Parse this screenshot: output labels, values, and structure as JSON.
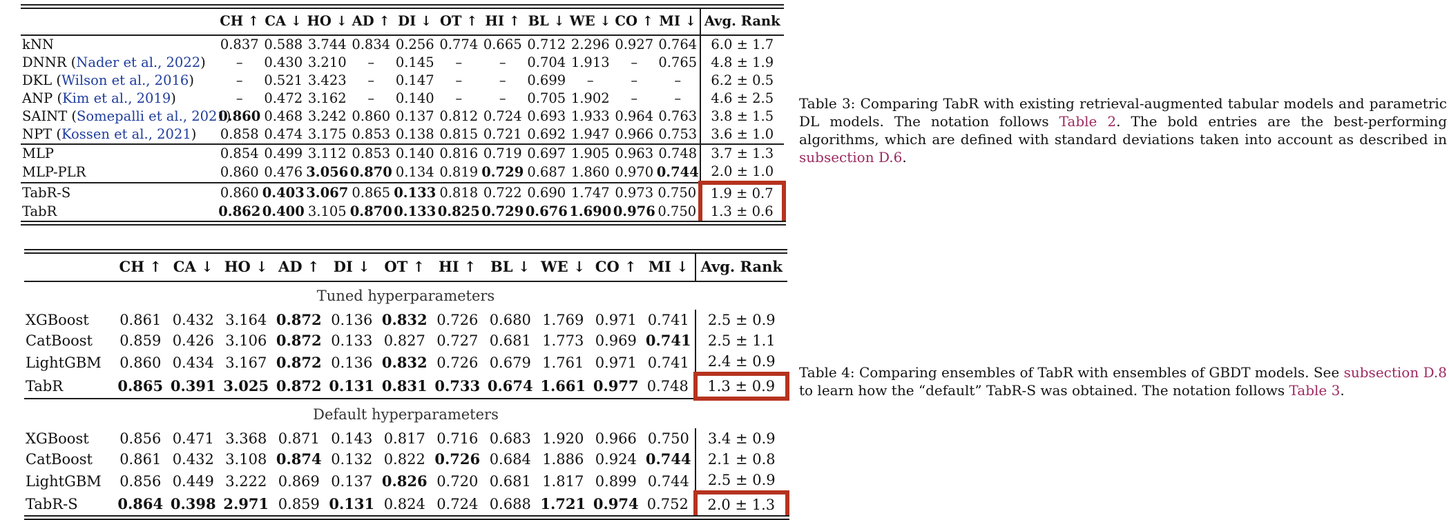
{
  "colors": {
    "rule": "#1c1c1c",
    "citation_link_blue": "#1f3d9c",
    "crossref_maroon": "#9d2a60",
    "highlight_box_red": "#b5331f"
  },
  "table3": {
    "headers": {
      "metrics": [
        "CH ↑",
        "CA ↓",
        "HO ↓",
        "AD ↑",
        "DI ↓",
        "OT ↑",
        "HI ↑",
        "BL ↓",
        "WE ↓",
        "CO ↑",
        "MI ↓"
      ],
      "avg": "Avg. Rank"
    },
    "groups": [
      {
        "rows": [
          {
            "name": "kNN",
            "values": [
              "0.837",
              "0.588",
              "3.744",
              "0.834",
              "0.256",
              "0.774",
              "0.665",
              "0.712",
              "2.296",
              "0.927",
              "0.764"
            ],
            "avg": "6.0 ± 1.7"
          },
          {
            "name": "DNNR",
            "cite": "Nader et al., 2022",
            "values": [
              "–",
              "0.430",
              "3.210",
              "–",
              "0.145",
              "–",
              "–",
              "0.704",
              "1.913",
              "–",
              "0.765"
            ],
            "avg": "4.8 ± 1.9"
          },
          {
            "name": "DKL",
            "cite": "Wilson et al., 2016",
            "values": [
              "–",
              "0.521",
              "3.423",
              "–",
              "0.147",
              "–",
              "–",
              "0.699",
              "–",
              "–",
              "–"
            ],
            "avg": "6.2 ± 0.5"
          },
          {
            "name": "ANP",
            "cite": "Kim et al., 2019",
            "values": [
              "–",
              "0.472",
              "3.162",
              "–",
              "0.140",
              "–",
              "–",
              "0.705",
              "1.902",
              "–",
              "–"
            ],
            "avg": "4.6 ± 2.5"
          },
          {
            "name": "SAINT",
            "cite": "Somepalli et al., 2021",
            "values": [
              "*0.860",
              "0.468",
              "3.242",
              "0.860",
              "0.137",
              "0.812",
              "0.724",
              "0.693",
              "1.933",
              "0.964",
              "0.763"
            ],
            "avg": "3.8 ± 1.5"
          },
          {
            "name": "NPT",
            "cite": "Kossen et al., 2021",
            "values": [
              "0.858",
              "0.474",
              "3.175",
              "0.853",
              "0.138",
              "0.815",
              "0.721",
              "0.692",
              "1.947",
              "0.966",
              "0.753"
            ],
            "avg": "3.6 ± 1.0"
          }
        ]
      },
      {
        "rows": [
          {
            "name": "MLP",
            "values": [
              "0.854",
              "0.499",
              "3.112",
              "0.853",
              "0.140",
              "0.816",
              "0.719",
              "0.697",
              "1.905",
              "0.963",
              "0.748"
            ],
            "avg": "3.7 ± 1.3"
          },
          {
            "name": "MLP-PLR",
            "values": [
              "0.860",
              "0.476",
              "*3.056",
              "*0.870",
              "0.134",
              "0.819",
              "*0.729",
              "0.687",
              "1.860",
              "0.970",
              "*0.744"
            ],
            "avg": "2.0 ± 1.0"
          }
        ]
      },
      {
        "rows": [
          {
            "name": "TabR-S",
            "values": [
              "0.860",
              "*0.403",
              "*3.067",
              "0.865",
              "*0.133",
              "0.818",
              "0.722",
              "0.690",
              "1.747",
              "0.973",
              "0.750"
            ],
            "avg": "1.9 ± 0.7",
            "redbox": "top"
          },
          {
            "name": "TabR",
            "values": [
              "*0.862",
              "*0.400",
              "3.105",
              "*0.870",
              "*0.133",
              "*0.825",
              "*0.729",
              "*0.676",
              "*1.690",
              "*0.976",
              "0.750"
            ],
            "avg": "1.3 ± 0.6",
            "redbox": "bottom"
          }
        ]
      }
    ]
  },
  "table4": {
    "headers": {
      "metrics": [
        "CH ↑",
        "CA ↓",
        "HO ↓",
        "AD ↑",
        "DI ↓",
        "OT ↑",
        "HI ↑",
        "BL ↓",
        "WE ↓",
        "CO ↑",
        "MI ↓"
      ],
      "avg": "Avg. Rank"
    },
    "groups": [
      {
        "title": "Tuned hyperparameters",
        "rows": [
          {
            "name": "XGBoost",
            "values": [
              "0.861",
              "0.432",
              "3.164",
              "*0.872",
              "0.136",
              "*0.832",
              "0.726",
              "0.680",
              "1.769",
              "0.971",
              "0.741"
            ],
            "avg": "2.5 ± 0.9"
          },
          {
            "name": "CatBoost",
            "values": [
              "0.859",
              "0.426",
              "3.106",
              "*0.872",
              "0.133",
              "0.827",
              "0.727",
              "0.681",
              "1.773",
              "0.969",
              "*0.741"
            ],
            "avg": "2.5 ± 1.1"
          },
          {
            "name": "LightGBM",
            "values": [
              "0.860",
              "0.434",
              "3.167",
              "*0.872",
              "0.136",
              "*0.832",
              "0.726",
              "0.679",
              "1.761",
              "0.971",
              "0.741"
            ],
            "avg": "2.4 ± 0.9"
          },
          {
            "name": "TabR",
            "values": [
              "*0.865",
              "*0.391",
              "*3.025",
              "*0.872",
              "*0.131",
              "*0.831",
              "*0.733",
              "*0.674",
              "*1.661",
              "*0.977",
              "0.748"
            ],
            "avg": "1.3 ± 0.9",
            "redbox": "full"
          }
        ]
      },
      {
        "title": "Default hyperparameters",
        "rows": [
          {
            "name": "XGBoost",
            "values": [
              "0.856",
              "0.471",
              "3.368",
              "0.871",
              "0.143",
              "0.817",
              "0.716",
              "0.683",
              "1.920",
              "0.966",
              "0.750"
            ],
            "avg": "3.4 ± 0.9"
          },
          {
            "name": "CatBoost",
            "values": [
              "0.861",
              "0.432",
              "3.108",
              "*0.874",
              "0.132",
              "0.822",
              "*0.726",
              "0.684",
              "1.886",
              "0.924",
              "*0.744"
            ],
            "avg": "2.1 ± 0.8"
          },
          {
            "name": "LightGBM",
            "values": [
              "0.856",
              "0.449",
              "3.222",
              "0.869",
              "0.137",
              "*0.826",
              "0.720",
              "0.681",
              "1.817",
              "0.899",
              "0.744"
            ],
            "avg": "2.5 ± 0.9"
          },
          {
            "name": "TabR-S",
            "values": [
              "*0.864",
              "*0.398",
              "*2.971",
              "0.859",
              "*0.131",
              "0.824",
              "0.724",
              "0.688",
              "*1.721",
              "*0.974",
              "0.752"
            ],
            "avg": "2.0 ± 1.3",
            "redbox": "full"
          }
        ]
      }
    ]
  },
  "captions": {
    "table3": [
      {
        "text": "Table 3:  Comparing TabR with existing retrieval-augmented tabular models and parametric DL models. The notation follows ",
        "link": false
      },
      {
        "text": "Table 2",
        "link": true
      },
      {
        "text": ". The bold entries are the best-performing algorithms, which are defined with standard deviations taken into account as described in ",
        "link": false
      },
      {
        "text": "subsection D.6",
        "link": true
      },
      {
        "text": ".",
        "link": false
      }
    ],
    "table4": [
      {
        "text": "Table 4:  Comparing ensembles of TabR with ensembles of GBDT models. See ",
        "link": false
      },
      {
        "text": "subsection D.8",
        "link": true
      },
      {
        "text": " to learn how the “default” TabR-S was obtained. The notation follows ",
        "link": false
      },
      {
        "text": "Table 3",
        "link": true
      },
      {
        "text": ".",
        "link": false
      }
    ]
  }
}
